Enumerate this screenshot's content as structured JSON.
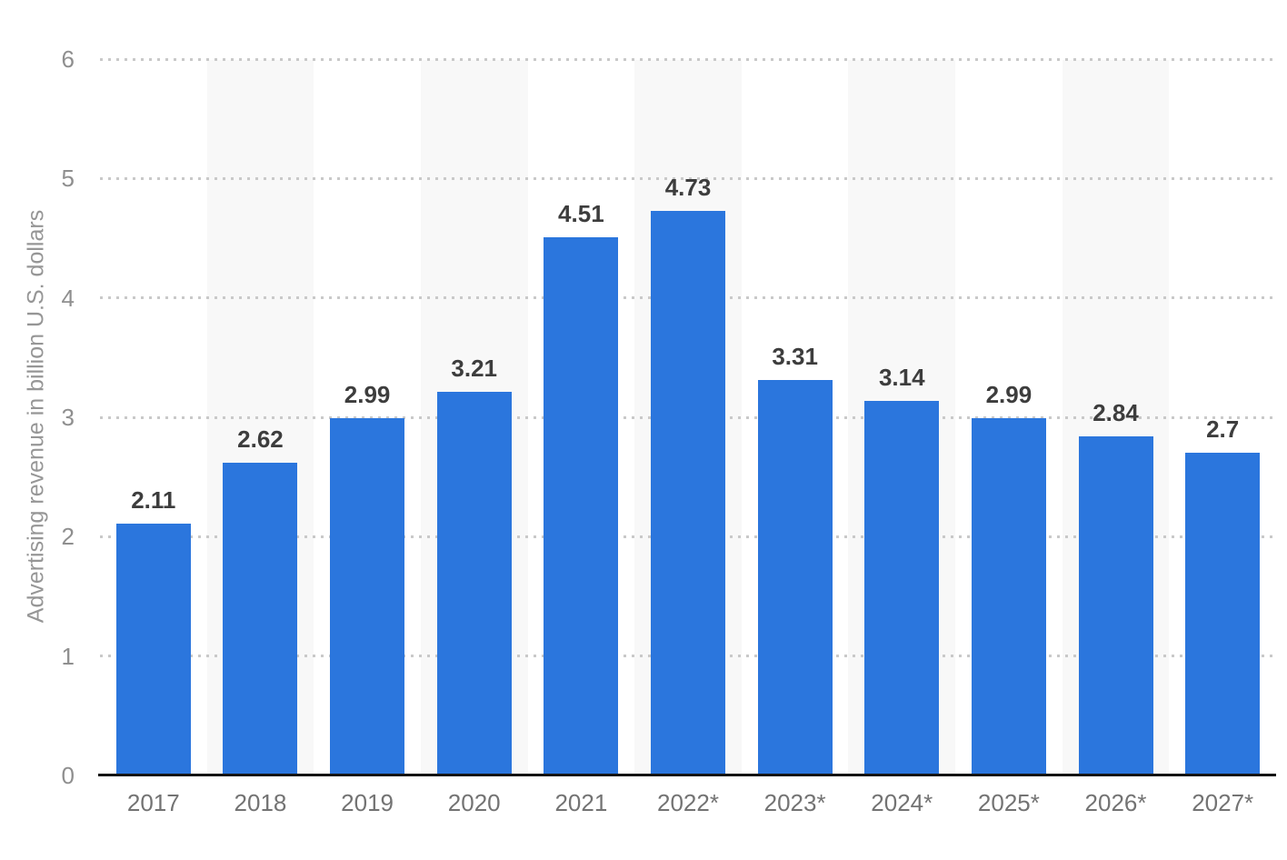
{
  "chart_data": {
    "type": "bar",
    "title": "",
    "xlabel": "",
    "ylabel": "Advertising revenue in billion U.S. dollars",
    "categories": [
      "2017",
      "2018",
      "2019",
      "2020",
      "2021",
      "2022*",
      "2023*",
      "2024*",
      "2025*",
      "2026*",
      "2027*"
    ],
    "values": [
      2.11,
      2.62,
      2.99,
      3.21,
      4.51,
      4.73,
      3.31,
      3.14,
      2.99,
      2.84,
      2.7
    ],
    "value_labels": [
      "2.11",
      "2.62",
      "2.99",
      "3.21",
      "4.51",
      "4.73",
      "3.31",
      "3.14",
      "2.99",
      "2.84",
      "2.7"
    ],
    "ylim": [
      0,
      6
    ],
    "yticks": [
      0,
      1,
      2,
      3,
      4,
      5,
      6
    ],
    "grid": "horizontal-dotted",
    "legend_position": "none",
    "striped_background_columns": [
      1,
      3,
      5,
      7,
      9
    ],
    "colors": {
      "bar": "#2b76dd",
      "column_stripe": "#f8f8f8",
      "gridline": "#c9c9c9",
      "axis_line": "#141414",
      "y_tick_label": "#8f8f8f",
      "x_tick_label": "#737373",
      "value_label": "#3d3d3d",
      "y_axis_title": "#969696",
      "background": "#ffffff"
    }
  }
}
